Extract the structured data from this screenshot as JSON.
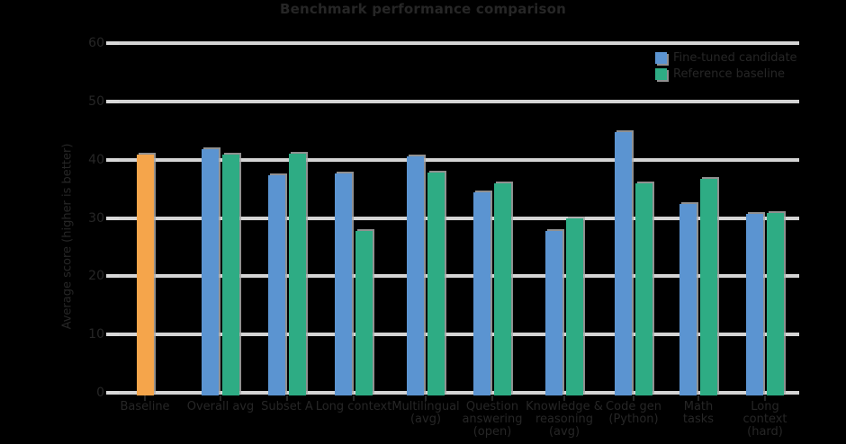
{
  "figure": {
    "background": "#000000",
    "text_color": "#262626",
    "gridline_color": "#d4d4d4",
    "shadow_color": "#a9a9a9"
  },
  "chart_data": {
    "type": "bar",
    "title": "Benchmark performance comparison",
    "ylabel": "Average score (higher is better)",
    "ylim": [
      0,
      60
    ],
    "yticks": [
      0,
      10,
      20,
      30,
      40,
      50,
      60
    ],
    "grid": "horizontal",
    "legend_position": "upper-right",
    "categories": [
      [
        "Baseline"
      ],
      [
        "Overall avg"
      ],
      [
        "Subset A"
      ],
      [
        "Long context"
      ],
      [
        "Multilingual",
        "(avg)"
      ],
      [
        "Question",
        "answering",
        "(open)"
      ],
      [
        "Knowledge &",
        "reasoning",
        "(avg)"
      ],
      [
        "Code gen",
        "(Python)"
      ],
      [
        "Math",
        "tasks"
      ],
      [
        "Long",
        "context",
        "(hard)"
      ]
    ],
    "series": [
      {
        "name": "Baseline",
        "color": "#F5A54B",
        "in_legend": false,
        "values": [
          41.3,
          null,
          null,
          null,
          null,
          null,
          null,
          null,
          null,
          null
        ]
      },
      {
        "name": "Fine-tuned candidate",
        "color": "#5B94D1",
        "in_legend": true,
        "values": [
          null,
          42.3,
          37.8,
          38.1,
          41.0,
          34.8,
          28.2,
          45.2,
          32.9,
          31.2
        ]
      },
      {
        "name": "Reference baseline",
        "color": "#2EAC84",
        "in_legend": true,
        "values": [
          null,
          41.4,
          41.5,
          28.3,
          38.2,
          36.4,
          30.4,
          36.4,
          37.2,
          31.3
        ]
      }
    ]
  }
}
